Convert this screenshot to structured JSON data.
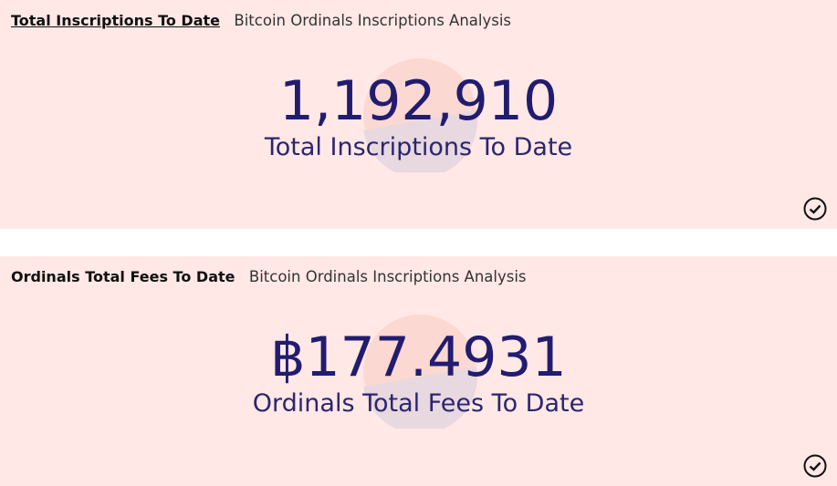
{
  "cards": [
    {
      "title": "Total Inscriptions To Date",
      "subtitle": "Bitcoin Ordinals Inscriptions Analysis",
      "value": "1,192,910",
      "label": "Total Inscriptions To Date",
      "status_icon": "check-circle-icon"
    },
    {
      "title": "Ordinals Total Fees To Date",
      "subtitle": "Bitcoin Ordinals Inscriptions Analysis",
      "value": "฿177.4931",
      "label": "Ordinals Total Fees To Date",
      "status_icon": "check-circle-icon"
    }
  ],
  "colors": {
    "background": "#ffe8e6",
    "value": "#221c6f",
    "deco_top": "#fcd8d2",
    "deco_bottom": "#e8d8df"
  }
}
